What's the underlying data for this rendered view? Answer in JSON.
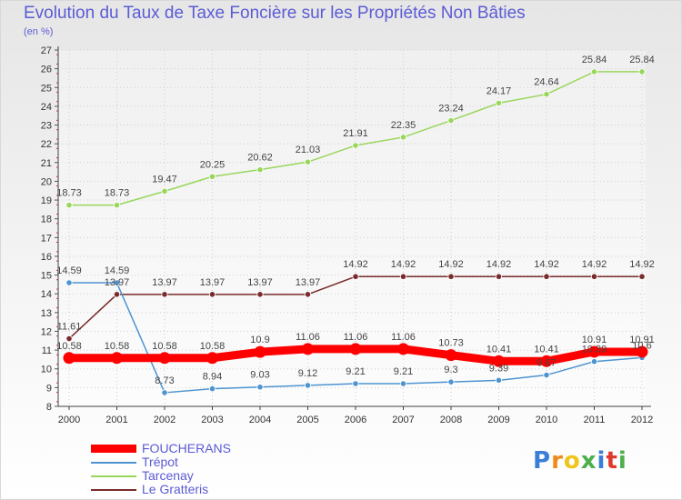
{
  "header": {
    "title": "Evolution du Taux de Taxe Foncière sur les Propriétés Non Bâties",
    "unit": "(en %)"
  },
  "logo": {
    "text": "Proxiti"
  },
  "chart_data": {
    "type": "line",
    "title": "Evolution du Taux de Taxe Foncière sur les Propriétés Non Bâties",
    "ylabel": "(en %)",
    "xlabel": "",
    "x": [
      "2000",
      "2001",
      "2002",
      "2003",
      "2004",
      "2005",
      "2006",
      "2007",
      "2008",
      "2009",
      "2010",
      "2011",
      "2012"
    ],
    "ylim": [
      8,
      27
    ],
    "yticks": [
      8,
      9,
      10,
      11,
      12,
      13,
      14,
      15,
      16,
      17,
      18,
      19,
      20,
      21,
      22,
      23,
      24,
      25,
      26,
      27
    ],
    "grid": true,
    "legend_position": "bottom-left",
    "series": [
      {
        "name": "FOUCHERANS",
        "color": "#ff0000",
        "values": [
          10.58,
          10.58,
          10.58,
          10.58,
          10.9,
          11.06,
          11.06,
          11.06,
          10.73,
          10.41,
          10.41,
          10.91,
          10.91
        ],
        "labels": [
          "10.58",
          "10.58",
          "10.58",
          "10.58",
          "10.9",
          "11.06",
          "11.06",
          "11.06",
          "10.73",
          "10.41",
          "10.41",
          "10.91",
          "10.91"
        ]
      },
      {
        "name": "Trépot",
        "color": "#4d94d1",
        "values": [
          14.59,
          14.59,
          8.73,
          8.94,
          9.03,
          9.12,
          9.21,
          9.21,
          9.3,
          9.39,
          9.67,
          10.39,
          10.6
        ],
        "labels": [
          "14.59",
          "14.59",
          "8.73",
          "8.94",
          "9.03",
          "9.12",
          "9.21",
          "9.21",
          "9.3",
          "9.39",
          "9.67",
          "10.39",
          "10.6"
        ]
      },
      {
        "name": "Tarcenay",
        "color": "#99d65c",
        "values": [
          18.73,
          18.73,
          19.47,
          20.25,
          20.62,
          21.03,
          21.91,
          22.35,
          23.24,
          24.17,
          24.64,
          25.84,
          25.84
        ],
        "labels": [
          "18.73",
          "18.73",
          "19.47",
          "20.25",
          "20.62",
          "21.03",
          "21.91",
          "22.35",
          "23.24",
          "24.17",
          "24.64",
          "25.84",
          "25.84"
        ]
      },
      {
        "name": "Le Gratteris",
        "color": "#7a2b2b",
        "values": [
          11.61,
          13.97,
          13.97,
          13.97,
          13.97,
          13.97,
          14.92,
          14.92,
          14.92,
          14.92,
          14.92,
          14.92,
          14.92
        ],
        "labels": [
          "11.61",
          "13.97",
          "13.97",
          "13.97",
          "13.97",
          "13.97",
          "14.92",
          "14.92",
          "14.92",
          "14.92",
          "14.92",
          "14.92",
          "14.92"
        ]
      }
    ]
  }
}
